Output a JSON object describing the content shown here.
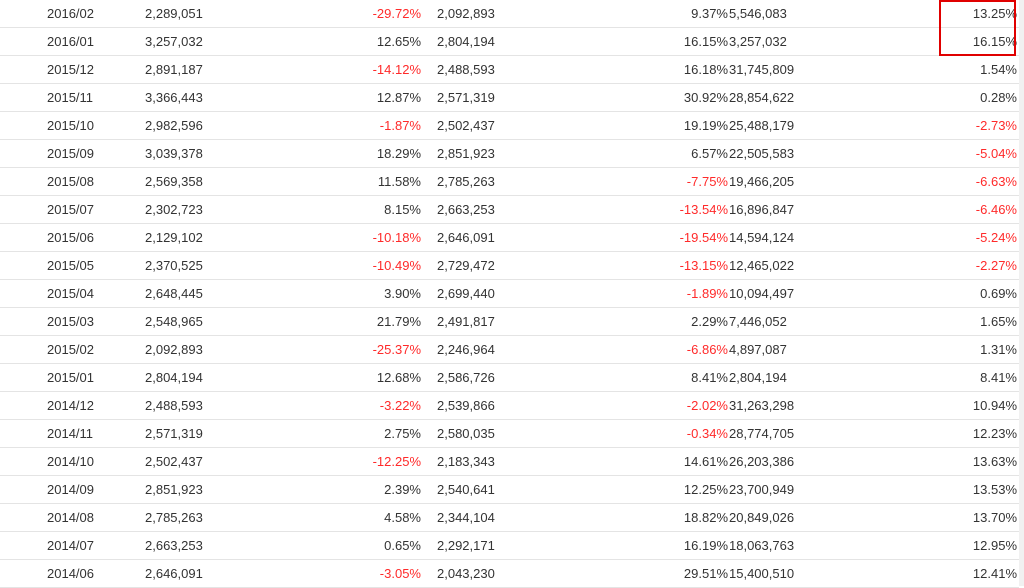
{
  "highlight": {
    "color": "#e00000"
  },
  "colors": {
    "negative": "#ff2a2a",
    "text": "#333333",
    "border": "#e4e4e4"
  },
  "rows": [
    [
      "2016/02",
      "2,289,051",
      "-29.72%",
      "2,092,893",
      "9.37%",
      "5,546,083",
      "13.25%"
    ],
    [
      "2016/01",
      "3,257,032",
      "12.65%",
      "2,804,194",
      "16.15%",
      "3,257,032",
      "16.15%"
    ],
    [
      "2015/12",
      "2,891,187",
      "-14.12%",
      "2,488,593",
      "16.18%",
      "31,745,809",
      "1.54%"
    ],
    [
      "2015/11",
      "3,366,443",
      "12.87%",
      "2,571,319",
      "30.92%",
      "28,854,622",
      "0.28%"
    ],
    [
      "2015/10",
      "2,982,596",
      "-1.87%",
      "2,502,437",
      "19.19%",
      "25,488,179",
      "-2.73%"
    ],
    [
      "2015/09",
      "3,039,378",
      "18.29%",
      "2,851,923",
      "6.57%",
      "22,505,583",
      "-5.04%"
    ],
    [
      "2015/08",
      "2,569,358",
      "11.58%",
      "2,785,263",
      "-7.75%",
      "19,466,205",
      "-6.63%"
    ],
    [
      "2015/07",
      "2,302,723",
      "8.15%",
      "2,663,253",
      "-13.54%",
      "16,896,847",
      "-6.46%"
    ],
    [
      "2015/06",
      "2,129,102",
      "-10.18%",
      "2,646,091",
      "-19.54%",
      "14,594,124",
      "-5.24%"
    ],
    [
      "2015/05",
      "2,370,525",
      "-10.49%",
      "2,729,472",
      "-13.15%",
      "12,465,022",
      "-2.27%"
    ],
    [
      "2015/04",
      "2,648,445",
      "3.90%",
      "2,699,440",
      "-1.89%",
      "10,094,497",
      "0.69%"
    ],
    [
      "2015/03",
      "2,548,965",
      "21.79%",
      "2,491,817",
      "2.29%",
      "7,446,052",
      "1.65%"
    ],
    [
      "2015/02",
      "2,092,893",
      "-25.37%",
      "2,246,964",
      "-6.86%",
      "4,897,087",
      "1.31%"
    ],
    [
      "2015/01",
      "2,804,194",
      "12.68%",
      "2,586,726",
      "8.41%",
      "2,804,194",
      "8.41%"
    ],
    [
      "2014/12",
      "2,488,593",
      "-3.22%",
      "2,539,866",
      "-2.02%",
      "31,263,298",
      "10.94%"
    ],
    [
      "2014/11",
      "2,571,319",
      "2.75%",
      "2,580,035",
      "-0.34%",
      "28,774,705",
      "12.23%"
    ],
    [
      "2014/10",
      "2,502,437",
      "-12.25%",
      "2,183,343",
      "14.61%",
      "26,203,386",
      "13.63%"
    ],
    [
      "2014/09",
      "2,851,923",
      "2.39%",
      "2,540,641",
      "12.25%",
      "23,700,949",
      "13.53%"
    ],
    [
      "2014/08",
      "2,785,263",
      "4.58%",
      "2,344,104",
      "18.82%",
      "20,849,026",
      "13.70%"
    ],
    [
      "2014/07",
      "2,663,253",
      "0.65%",
      "2,292,171",
      "16.19%",
      "18,063,763",
      "12.95%"
    ],
    [
      "2014/06",
      "2,646,091",
      "-3.05%",
      "2,043,230",
      "29.51%",
      "15,400,510",
      "12.41%"
    ]
  ]
}
